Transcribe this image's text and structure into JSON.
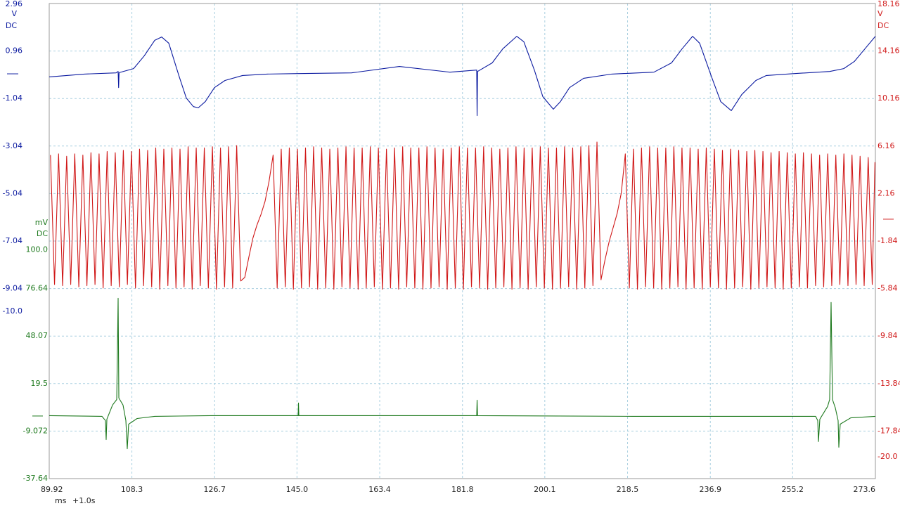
{
  "chart_data": {
    "type": "line",
    "x_unit": "ms",
    "x_offset": "+1.0s",
    "xlim": [
      89.92,
      273.6
    ],
    "xticks": [
      89.92,
      108.3,
      126.7,
      {
        "value": 145,
        "label": "145.0"
      },
      163.4,
      181.8,
      200.1,
      218.5,
      236.9,
      255.2,
      273.6
    ],
    "grid": true,
    "axes": [
      {
        "side": "left",
        "unit": "V",
        "coupling": "DC",
        "color": "#0b1aa0",
        "ylim": [
          -17.04,
          2.96
        ],
        "yticks": [
          2.96,
          0.96,
          -1.04,
          -3.04,
          -5.04,
          -7.04,
          -9.04,
          {
            "value": -10,
            "label": "-10.0"
          }
        ]
      },
      {
        "side": "right",
        "unit": "V",
        "coupling": "DC",
        "color": "#d01818",
        "ylim": [
          -21.84,
          18.16
        ],
        "yticks": [
          18.16,
          14.16,
          10.16,
          6.16,
          2.16,
          -1.84,
          -5.84,
          -9.84,
          -13.84,
          -17.84,
          {
            "value": -20,
            "label": "-20.0"
          }
        ]
      },
      {
        "side": "left",
        "unit": "mV",
        "coupling": "DC",
        "color": "#1f7a1f",
        "ylim": [
          -37.64,
          248.06
        ],
        "yticks": [
          {
            "value": 100,
            "label": "100.0"
          },
          76.64,
          48.07,
          19.5,
          -9.072,
          -37.64
        ]
      }
    ],
    "series": [
      {
        "axis": 0,
        "color": "#0b1aa0",
        "x": [
          89.92,
          97.74,
          104.77,
          105.24,
          105.35,
          105.45,
          108.68,
          111.02,
          113.37,
          114.93,
          116.5,
          118.84,
          120.4,
          121.97,
          123.06,
          124.62,
          126.65,
          129.0,
          132.91,
          138.38,
          145.26,
          157.14,
          167.77,
          179.0,
          184.96,
          185.05,
          185.15,
          188.4,
          190.75,
          193.87,
          195.44,
          197.78,
          199.66,
          202.0,
          203.57,
          205.6,
          208.73,
          214.98,
          224.36,
          228.27,
          230.61,
          232.96,
          234.52,
          237.18,
          239.21,
          241.56,
          243.9,
          247.03,
          249.37,
          255.62,
          263.44,
          266.57,
          268.92,
          271.26,
          273.6
        ],
        "values": [
          -0.13,
          -0.01,
          0.04,
          0.1,
          -0.58,
          0.05,
          0.22,
          0.75,
          1.41,
          1.55,
          1.29,
          -0.13,
          -1.02,
          -1.38,
          -1.43,
          -1.17,
          -0.58,
          -0.28,
          -0.07,
          -0.01,
          0.01,
          0.04,
          0.31,
          0.07,
          0.16,
          -1.76,
          0.1,
          0.46,
          1.05,
          1.58,
          1.35,
          0.16,
          -0.96,
          -1.49,
          -1.17,
          -0.58,
          -0.19,
          -0.01,
          0.07,
          0.46,
          1.05,
          1.58,
          1.29,
          -0.13,
          -1.17,
          -1.55,
          -0.87,
          -0.28,
          -0.07,
          0.01,
          0.1,
          0.22,
          0.52,
          1.05,
          1.58
        ]
      },
      {
        "axis": 1,
        "color": "#d01818",
        "x": [
          90.2,
          91.1,
          92.0,
          92.9,
          93.8,
          94.7,
          95.6,
          96.5,
          97.4,
          98.3,
          99.2,
          100.1,
          101.0,
          101.9,
          102.8,
          103.7,
          104.6,
          105.5,
          106.4,
          107.3,
          108.2,
          109.1,
          110.0,
          110.9,
          111.8,
          112.7,
          113.6,
          114.5,
          115.4,
          116.3,
          117.2,
          118.1,
          119.0,
          119.9,
          120.8,
          121.7,
          122.6,
          123.5,
          124.4,
          125.3,
          126.2,
          127.1,
          128.0,
          128.9,
          129.8,
          130.7,
          131.6,
          132.5,
          133.4,
          134.3,
          135.2,
          136.1,
          137.0,
          137.9,
          138.8,
          139.7,
          140.6,
          141.5,
          142.4,
          143.3,
          144.2,
          145.1,
          146.0,
          146.9,
          147.8,
          148.7,
          149.6,
          150.5,
          151.4,
          152.3,
          153.2,
          154.1,
          155.0,
          155.9,
          156.8,
          157.7,
          158.6,
          159.5,
          160.4,
          161.3,
          162.2,
          163.1,
          164.0,
          164.9,
          165.8,
          166.7,
          167.6,
          168.5,
          169.4,
          170.3,
          171.2,
          172.1,
          173.0,
          173.9,
          174.8,
          175.7,
          176.6,
          177.5,
          178.4,
          179.3,
          180.2,
          181.1,
          182.0,
          182.9,
          183.8,
          184.7,
          185.6,
          186.5,
          187.4,
          188.3,
          189.2,
          190.1,
          191.0,
          191.9,
          192.8,
          193.7,
          194.6,
          195.5,
          196.4,
          197.3,
          198.2,
          199.1,
          200.0,
          200.9,
          201.8,
          202.7,
          203.6,
          204.5,
          205.4,
          206.3,
          207.2,
          208.1,
          209.0,
          209.9,
          210.8,
          211.7,
          212.6,
          213.5,
          214.4,
          215.3,
          216.2,
          217.1,
          218.0,
          218.9,
          219.8,
          220.7,
          221.6,
          222.5,
          223.4,
          224.3,
          225.2,
          226.1,
          227.0,
          227.9,
          228.8,
          229.7,
          230.6,
          231.5,
          232.4,
          233.3,
          234.2,
          235.1,
          236.0,
          236.9,
          237.8,
          238.7,
          239.6,
          240.5,
          241.4,
          242.3,
          243.2,
          244.1,
          245.0,
          245.9,
          246.8,
          247.7,
          248.6,
          249.5,
          250.4,
          251.3,
          252.2,
          253.1,
          254.0,
          254.9,
          255.8,
          256.7,
          257.6,
          258.5,
          259.4,
          260.3,
          261.2,
          262.1,
          263.0,
          263.9,
          264.8,
          265.7,
          266.6,
          267.5,
          268.4,
          269.3,
          270.2,
          271.1,
          272.0,
          272.9,
          273.5
        ],
        "values": [
          5.4,
          -5.5,
          5.5,
          -5.6,
          5.3,
          -5.5,
          5.5,
          -5.7,
          5.4,
          -5.6,
          5.6,
          -5.5,
          5.5,
          -5.8,
          5.7,
          -5.6,
          5.6,
          -5.7,
          5.8,
          -5.5,
          5.7,
          -5.8,
          5.9,
          -5.6,
          5.8,
          -5.7,
          6.0,
          -5.9,
          5.9,
          -5.6,
          6.0,
          -5.8,
          5.9,
          -5.7,
          6.1,
          -5.9,
          6.0,
          -5.6,
          6.0,
          -5.8,
          6.1,
          -5.9,
          6.0,
          -5.7,
          6.1,
          -5.8,
          6.2,
          -5.2,
          -4.9,
          -3.2,
          -1.6,
          -0.5,
          0.4,
          1.5,
          3.2,
          5.4,
          -5.8,
          5.9,
          -5.7,
          6.0,
          -5.9,
          5.9,
          -5.8,
          6.0,
          -5.7,
          6.1,
          -5.9,
          6.0,
          -5.8,
          5.9,
          -5.9,
          6.0,
          -5.7,
          6.1,
          -5.8,
          6.0,
          -5.9,
          6.0,
          -5.8,
          6.1,
          -5.7,
          6.0,
          -5.9,
          5.9,
          -5.8,
          6.0,
          -5.9,
          6.1,
          -5.7,
          6.0,
          -5.8,
          6.0,
          -5.9,
          6.1,
          -5.8,
          6.0,
          -5.7,
          5.9,
          -5.9,
          6.0,
          -5.8,
          6.1,
          -5.9,
          6.0,
          -5.7,
          6.0,
          -5.8,
          6.1,
          -5.9,
          6.0,
          -5.8,
          5.9,
          -5.7,
          6.0,
          -5.9,
          6.1,
          -5.8,
          6.0,
          -5.9,
          6.0,
          -5.7,
          6.1,
          -5.8,
          6.0,
          -5.9,
          6.0,
          -5.8,
          6.1,
          -5.7,
          6.0,
          -5.9,
          6.1,
          -5.8,
          6.2,
          -5.6,
          6.5,
          -5.1,
          -3.4,
          -1.9,
          -0.7,
          0.5,
          2.2,
          5.5,
          -5.8,
          5.9,
          -5.9,
          6.0,
          -5.7,
          6.1,
          -5.8,
          6.0,
          -5.9,
          6.0,
          -5.8,
          6.1,
          -5.7,
          6.0,
          -5.9,
          6.0,
          -5.8,
          5.9,
          -5.9,
          6.0,
          -5.7,
          5.9,
          -5.8,
          5.8,
          -5.9,
          5.9,
          -5.8,
          5.8,
          -5.7,
          5.7,
          -5.9,
          5.8,
          -5.8,
          5.7,
          -5.7,
          5.6,
          -5.8,
          5.7,
          -5.9,
          5.6,
          -5.8,
          5.5,
          -5.7,
          5.6,
          -5.8,
          5.5,
          -5.6,
          5.4,
          -5.7,
          5.5,
          -5.6,
          5.4,
          -5.5,
          5.5,
          -5.6,
          5.4,
          -5.5,
          5.3,
          -5.6,
          5.2,
          -5.5,
          4.8
        ]
      },
      {
        "axis": 2,
        "color": "#1f7a1f",
        "x": [
          89.92,
          101.64,
          102.42,
          102.58,
          102.74,
          104.0,
          104.93,
          105.24,
          105.4,
          106.33,
          106.96,
          107.27,
          107.58,
          109.46,
          113.37,
          125.87,
          145.26,
          145.34,
          145.42,
          184.96,
          185.05,
          185.15,
          219.67,
          260.31,
          260.78,
          260.94,
          261.25,
          262.97,
          263.43,
          263.75,
          264.06,
          264.69,
          265.31,
          265.47,
          265.78,
          268.12,
          273.6
        ],
        "values": [
          0.2,
          -0.2,
          -2.7,
          -14.2,
          -1.9,
          6.6,
          9.9,
          70.8,
          10.8,
          6.6,
          -2.7,
          -19.7,
          -4.9,
          -1.5,
          -0.2,
          0.2,
          0.2,
          7.8,
          0.2,
          0.2,
          9.5,
          0.2,
          -0.2,
          -0.2,
          -2.7,
          -15.4,
          -1.9,
          5.7,
          9.9,
          68.3,
          9.9,
          4.9,
          -2.7,
          -18.8,
          -4.9,
          -1.1,
          -0.2
        ]
      }
    ]
  }
}
